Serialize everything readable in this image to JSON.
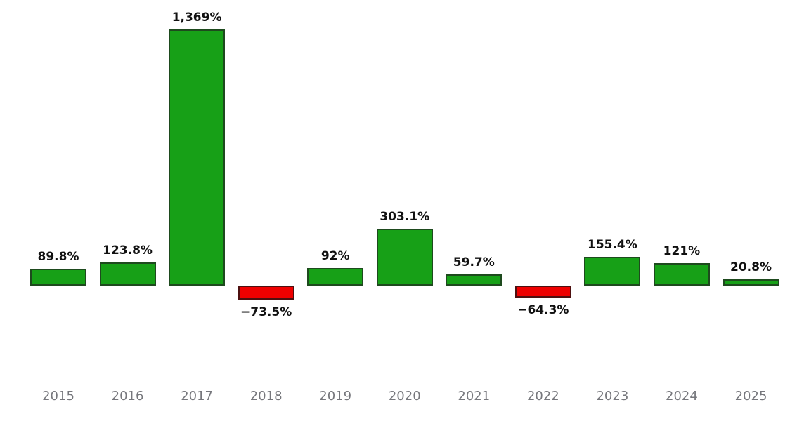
{
  "chart_data": {
    "type": "bar",
    "title": "",
    "xlabel": "",
    "ylabel": "",
    "grid": false,
    "legend": false,
    "baseline": 0,
    "ylim": [
      -160,
      1420
    ],
    "categories": [
      "2015",
      "2016",
      "2017",
      "2018",
      "2019",
      "2020",
      "2021",
      "2022",
      "2023",
      "2024",
      "2025"
    ],
    "values": [
      89.8,
      123.8,
      1369,
      -73.5,
      92,
      303.1,
      59.7,
      -64.3,
      155.4,
      121,
      20.8
    ],
    "labels": [
      "89.8%",
      "123.8%",
      "1,369%",
      "−73.5%",
      "92%",
      "303.1%",
      "59.7%",
      "−64.3%",
      "155.4%",
      "121%",
      "20.8%"
    ],
    "colors": {
      "positive": "#17a017",
      "positive_border": "#1e4a1e",
      "negative": "#ee0000",
      "negative_border": "#4d1010",
      "value_label": "#111111",
      "axis_label": "#76777c",
      "axis_line": "#dde0e4",
      "background": "#ffffff"
    }
  }
}
